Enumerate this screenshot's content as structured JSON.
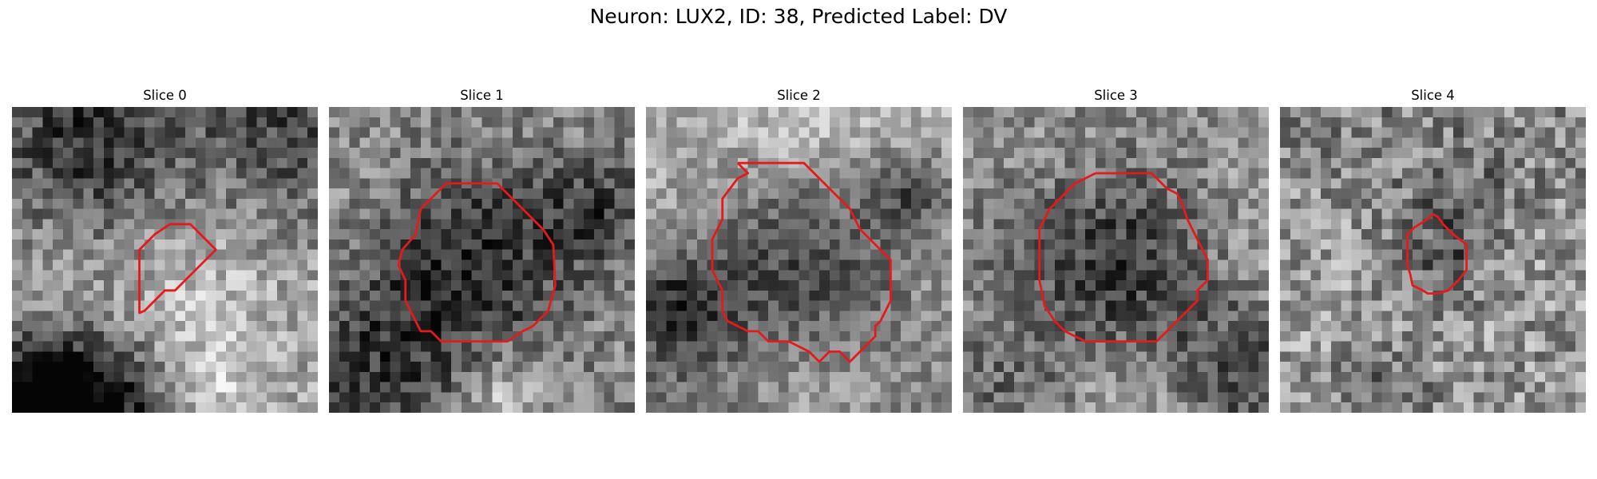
{
  "figure": {
    "title": "Neuron: LUX2, ID: 38, Predicted Label: DV"
  },
  "colors": {
    "contour": "#e41a1c",
    "background": "#ffffff"
  },
  "panels": [
    {
      "label": "Slice 0",
      "image": {
        "grid": 30,
        "bg": [
          0.52,
          0.6,
          0.62
        ],
        "noise": 0.2,
        "seed": 11,
        "blobs": [
          [
            7,
            3,
            6,
            -0.35
          ],
          [
            26,
            2,
            6,
            -0.25
          ],
          [
            2,
            28,
            4,
            -0.6
          ],
          [
            8,
            29,
            5,
            -0.55
          ],
          [
            18,
            20,
            6,
            0.15
          ],
          [
            20,
            27,
            3,
            0.15
          ]
        ]
      },
      "contour": [
        [
          15.5,
          11.5
        ],
        [
          17.5,
          11.5
        ],
        [
          20.0,
          14.0
        ],
        [
          17.0,
          17.0
        ],
        [
          16.0,
          18.0
        ],
        [
          15.0,
          18.0
        ],
        [
          13.0,
          20.0
        ],
        [
          12.5,
          20.2
        ],
        [
          12.5,
          14.0
        ],
        [
          14.0,
          12.5
        ],
        [
          15.5,
          11.5
        ]
      ]
    },
    {
      "label": "Slice 1",
      "image": {
        "grid": 30,
        "bg": [
          0.55,
          0.62,
          0.5
        ],
        "noise": 0.2,
        "seed": 23,
        "blobs": [
          [
            14.5,
            14.5,
            7,
            -0.4
          ],
          [
            5,
            24,
            7,
            -0.3
          ],
          [
            14,
            27,
            5,
            0.1
          ],
          [
            17,
            28,
            3,
            0.25
          ],
          [
            26,
            10,
            4,
            -0.3
          ]
        ]
      },
      "contour": [
        [
          11.5,
          7.5
        ],
        [
          16.5,
          7.5
        ],
        [
          19.0,
          10.0
        ],
        [
          21.0,
          12.0
        ],
        [
          22.0,
          13.5
        ],
        [
          22.2,
          17.5
        ],
        [
          21.5,
          20.0
        ],
        [
          20.0,
          21.5
        ],
        [
          19.0,
          22.0
        ],
        [
          17.5,
          23.0
        ],
        [
          11.0,
          23.0
        ],
        [
          10.0,
          22.0
        ],
        [
          9.0,
          22.0
        ],
        [
          8.0,
          20.0
        ],
        [
          7.5,
          19.0
        ],
        [
          7.5,
          17.0
        ],
        [
          6.8,
          15.5
        ],
        [
          7.2,
          14.0
        ],
        [
          8.5,
          12.5
        ],
        [
          9.0,
          10.0
        ],
        [
          10.0,
          9.0
        ],
        [
          11.5,
          7.5
        ]
      ]
    },
    {
      "label": "Slice 2",
      "image": {
        "grid": 30,
        "bg": [
          0.7,
          0.72,
          0.5
        ],
        "noise": 0.17,
        "seed": 37,
        "blobs": [
          [
            15,
            15,
            8,
            -0.45
          ],
          [
            2,
            19,
            4,
            -0.4
          ],
          [
            26,
            8,
            3,
            -0.3
          ],
          [
            16,
            27,
            6,
            0.2
          ],
          [
            15,
            2,
            5,
            0.15
          ]
        ]
      },
      "contour": [
        [
          9.0,
          5.5
        ],
        [
          15.5,
          5.5
        ],
        [
          19.0,
          9.0
        ],
        [
          20.0,
          10.0
        ],
        [
          21.0,
          12.0
        ],
        [
          24.0,
          15.0
        ],
        [
          24.0,
          19.0
        ],
        [
          23.5,
          20.0
        ],
        [
          23.0,
          21.0
        ],
        [
          22.5,
          21.5
        ],
        [
          22.5,
          22.5
        ],
        [
          21.0,
          24.0
        ],
        [
          20.0,
          25.0
        ],
        [
          19.0,
          24.0
        ],
        [
          18.0,
          24.0
        ],
        [
          17.0,
          25.0
        ],
        [
          16.0,
          24.0
        ],
        [
          14.0,
          23.0
        ],
        [
          12.0,
          23.0
        ],
        [
          11.0,
          22.0
        ],
        [
          10.0,
          22.0
        ],
        [
          8.0,
          21.0
        ],
        [
          7.5,
          20.0
        ],
        [
          7.5,
          18.0
        ],
        [
          6.5,
          16.0
        ],
        [
          6.5,
          13.0
        ],
        [
          7.5,
          11.0
        ],
        [
          7.5,
          9.0
        ],
        [
          9.0,
          7.0
        ],
        [
          10.0,
          6.5
        ],
        [
          9.0,
          5.5
        ]
      ]
    },
    {
      "label": "Slice 3",
      "image": {
        "grid": 30,
        "bg": [
          0.58,
          0.68,
          0.55
        ],
        "noise": 0.2,
        "seed": 53,
        "blobs": [
          [
            15,
            15,
            7,
            -0.45
          ],
          [
            27,
            25,
            5,
            -0.25
          ],
          [
            4,
            26,
            5,
            -0.15
          ],
          [
            15,
            28,
            5,
            0.15
          ],
          [
            2,
            13,
            4,
            -0.15
          ]
        ]
      },
      "contour": [
        [
          13.0,
          6.5
        ],
        [
          18.5,
          6.5
        ],
        [
          20.0,
          8.0
        ],
        [
          21.0,
          8.5
        ],
        [
          21.5,
          9.5
        ],
        [
          22.0,
          11.0
        ],
        [
          23.0,
          13.0
        ],
        [
          24.0,
          15.0
        ],
        [
          24.0,
          17.0
        ],
        [
          23.0,
          18.0
        ],
        [
          23.0,
          19.0
        ],
        [
          22.5,
          19.5
        ],
        [
          19.0,
          23.0
        ],
        [
          12.0,
          23.0
        ],
        [
          10.0,
          22.0
        ],
        [
          9.0,
          21.0
        ],
        [
          8.0,
          19.5
        ],
        [
          7.5,
          17.0
        ],
        [
          7.5,
          12.0
        ],
        [
          8.5,
          10.0
        ],
        [
          9.5,
          9.0
        ],
        [
          11.0,
          7.5
        ],
        [
          12.0,
          7.0
        ],
        [
          13.0,
          6.5
        ]
      ]
    },
    {
      "label": "Slice 4",
      "image": {
        "grid": 30,
        "bg": [
          0.52,
          0.6,
          0.58
        ],
        "noise": 0.25,
        "seed": 71,
        "blobs": [
          [
            15.5,
            14.5,
            3,
            -0.2
          ],
          [
            17,
            9,
            4,
            -0.15
          ],
          [
            10,
            27,
            3,
            -0.15
          ]
        ]
      },
      "contour": [
        [
          15.0,
          10.5
        ],
        [
          15.5,
          10.8
        ],
        [
          16.0,
          11.5
        ],
        [
          17.0,
          12.5
        ],
        [
          18.3,
          13.5
        ],
        [
          18.3,
          16.0
        ],
        [
          17.5,
          17.0
        ],
        [
          17.0,
          17.5
        ],
        [
          16.5,
          18.0
        ],
        [
          15.5,
          18.3
        ],
        [
          14.5,
          18.3
        ],
        [
          14.0,
          18.0
        ],
        [
          13.0,
          17.5
        ],
        [
          12.8,
          16.5
        ],
        [
          12.5,
          15.5
        ],
        [
          12.5,
          12.5
        ],
        [
          13.2,
          11.8
        ],
        [
          14.5,
          11.0
        ],
        [
          15.0,
          10.5
        ]
      ]
    }
  ]
}
